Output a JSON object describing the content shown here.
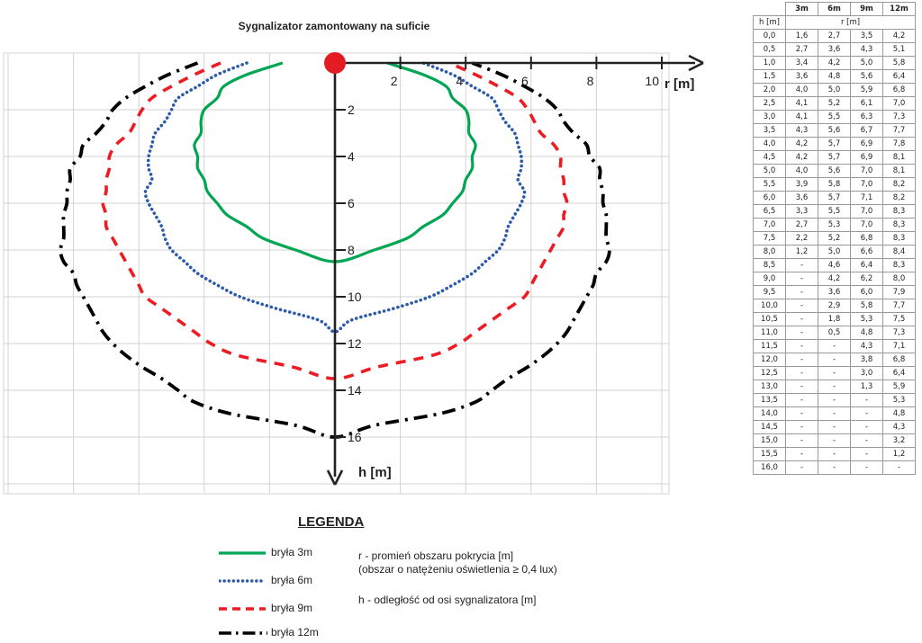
{
  "chart_data": {
    "type": "line",
    "title": "Sygnalizator zamontowany na suficie",
    "xlabel": "r [m]",
    "ylabel": "h [m]",
    "xlim": [
      -10,
      10
    ],
    "ylim": [
      0,
      16
    ],
    "x_ticks": [
      "2",
      "4",
      "6",
      "8",
      "10"
    ],
    "y_ticks": [
      "2",
      "4",
      "6",
      "8",
      "10",
      "12",
      "14",
      "16"
    ],
    "grid": true,
    "series": [
      {
        "name": "bryła 3m",
        "color": "#00a651",
        "h": [
          0.0,
          0.5,
          1.0,
          1.5,
          2.0,
          2.5,
          3.0,
          3.5,
          4.0,
          4.5,
          5.0,
          5.5,
          6.0,
          6.5,
          7.0,
          7.5,
          8.0,
          8.5
        ],
        "r": [
          1.6,
          2.7,
          3.4,
          3.6,
          4.0,
          4.1,
          4.1,
          4.3,
          4.2,
          4.2,
          4.0,
          3.9,
          3.6,
          3.3,
          2.7,
          2.2,
          1.2,
          0
        ]
      },
      {
        "name": "bryła 6m",
        "color": "#2b5aa8",
        "h": [
          0.0,
          0.5,
          1.0,
          1.5,
          2.0,
          2.5,
          3.0,
          3.5,
          4.0,
          4.5,
          5.0,
          5.5,
          6.0,
          6.5,
          7.0,
          7.5,
          8.0,
          8.5,
          9.0,
          9.5,
          10.0,
          10.5,
          11.0,
          11.5
        ],
        "r": [
          2.7,
          3.6,
          4.2,
          4.8,
          5.0,
          5.2,
          5.5,
          5.6,
          5.7,
          5.7,
          5.6,
          5.8,
          5.7,
          5.5,
          5.3,
          5.2,
          5.0,
          4.6,
          4.2,
          3.6,
          2.9,
          1.8,
          0.5,
          0
        ]
      },
      {
        "name": "bryła 9m",
        "color": "#ed1c24",
        "h": [
          0.0,
          0.5,
          1.0,
          1.5,
          2.0,
          2.5,
          3.0,
          3.5,
          4.0,
          4.5,
          5.0,
          5.5,
          6.0,
          6.5,
          7.0,
          7.5,
          8.0,
          8.5,
          9.0,
          9.5,
          10.0,
          10.5,
          11.0,
          11.5,
          12.0,
          12.5,
          13.0,
          13.5
        ],
        "r": [
          3.5,
          4.3,
          5.0,
          5.6,
          5.9,
          6.1,
          6.3,
          6.7,
          6.9,
          6.9,
          7.0,
          7.0,
          7.1,
          7.0,
          7.0,
          6.8,
          6.6,
          6.4,
          6.2,
          6.0,
          5.8,
          5.3,
          4.8,
          4.3,
          3.8,
          3.0,
          1.3,
          0
        ]
      },
      {
        "name": "bryła 12m",
        "color": "#000000",
        "h": [
          0.0,
          0.5,
          1.0,
          1.5,
          2.0,
          2.5,
          3.0,
          3.5,
          4.0,
          4.5,
          5.0,
          5.5,
          6.0,
          6.5,
          7.0,
          7.5,
          8.0,
          8.5,
          9.0,
          9.5,
          10.0,
          10.5,
          11.0,
          11.5,
          12.0,
          12.5,
          13.0,
          13.5,
          14.0,
          14.5,
          15.0,
          15.5,
          16.0
        ],
        "r": [
          4.2,
          5.1,
          5.8,
          6.4,
          6.8,
          7.0,
          7.3,
          7.7,
          7.8,
          8.1,
          8.1,
          8.2,
          8.2,
          8.3,
          8.3,
          8.3,
          8.4,
          8.3,
          8.0,
          7.9,
          7.7,
          7.5,
          7.3,
          7.1,
          6.8,
          6.4,
          5.9,
          5.3,
          4.8,
          4.3,
          3.2,
          1.2,
          0
        ]
      }
    ]
  },
  "table": {
    "headers": [
      "h [m]",
      "3m",
      "6m",
      "9m",
      "12m"
    ],
    "subheader": "r [m]",
    "rows": [
      [
        "0,0",
        "1,6",
        "2,7",
        "3,5",
        "4,2"
      ],
      [
        "0,5",
        "2,7",
        "3,6",
        "4,3",
        "5,1"
      ],
      [
        "1,0",
        "3,4",
        "4,2",
        "5,0",
        "5,8"
      ],
      [
        "1,5",
        "3,6",
        "4,8",
        "5,6",
        "6,4"
      ],
      [
        "2,0",
        "4,0",
        "5,0",
        "5,9",
        "6,8"
      ],
      [
        "2,5",
        "4,1",
        "5,2",
        "6,1",
        "7,0"
      ],
      [
        "3,0",
        "4,1",
        "5,5",
        "6,3",
        "7,3"
      ],
      [
        "3,5",
        "4,3",
        "5,6",
        "6,7",
        "7,7"
      ],
      [
        "4,0",
        "4,2",
        "5,7",
        "6,9",
        "7,8"
      ],
      [
        "4,5",
        "4,2",
        "5,7",
        "6,9",
        "8,1"
      ],
      [
        "5,0",
        "4,0",
        "5,6",
        "7,0",
        "8,1"
      ],
      [
        "5,5",
        "3,9",
        "5,8",
        "7,0",
        "8,2"
      ],
      [
        "6,0",
        "3,6",
        "5,7",
        "7,1",
        "8,2"
      ],
      [
        "6,5",
        "3,3",
        "5,5",
        "7,0",
        "8,3"
      ],
      [
        "7,0",
        "2,7",
        "5,3",
        "7,0",
        "8,3"
      ],
      [
        "7,5",
        "2,2",
        "5,2",
        "6,8",
        "8,3"
      ],
      [
        "8,0",
        "1,2",
        "5,0",
        "6,6",
        "8,4"
      ],
      [
        "8,5",
        "-",
        "4,6",
        "6,4",
        "8,3"
      ],
      [
        "9,0",
        "-",
        "4,2",
        "6,2",
        "8,0"
      ],
      [
        "9,5",
        "-",
        "3,6",
        "6,0",
        "7,9"
      ],
      [
        "10,0",
        "-",
        "2,9",
        "5,8",
        "7,7"
      ],
      [
        "10,5",
        "-",
        "1,8",
        "5,3",
        "7,5"
      ],
      [
        "11,0",
        "-",
        "0,5",
        "4,8",
        "7,3"
      ],
      [
        "11,5",
        "-",
        "-",
        "4,3",
        "7,1"
      ],
      [
        "12,0",
        "-",
        "-",
        "3,8",
        "6,8"
      ],
      [
        "12,5",
        "-",
        "-",
        "3,0",
        "6,4"
      ],
      [
        "13,0",
        "-",
        "-",
        "1,3",
        "5,9"
      ],
      [
        "13,5",
        "-",
        "-",
        "-",
        "5,3"
      ],
      [
        "14,0",
        "-",
        "-",
        "-",
        "4,8"
      ],
      [
        "14,5",
        "-",
        "-",
        "-",
        "4,3"
      ],
      [
        "15,0",
        "-",
        "-",
        "-",
        "3,2"
      ],
      [
        "15,5",
        "-",
        "-",
        "-",
        "1,2"
      ],
      [
        "16,0",
        "-",
        "-",
        "-",
        "-"
      ]
    ]
  },
  "legend": {
    "title": "LEGENDA",
    "items": [
      "bryła 3m",
      "bryła 6m",
      "bryła 9m",
      "bryła 12m"
    ]
  },
  "notes": {
    "r_line1": "r - promień obszaru pokrycia [m]",
    "r_line2": "(obszar o natężeniu oświetlenia ≥ 0,4 lux)",
    "h_line": "h - odległość od osi sygnalizatora [m]"
  }
}
